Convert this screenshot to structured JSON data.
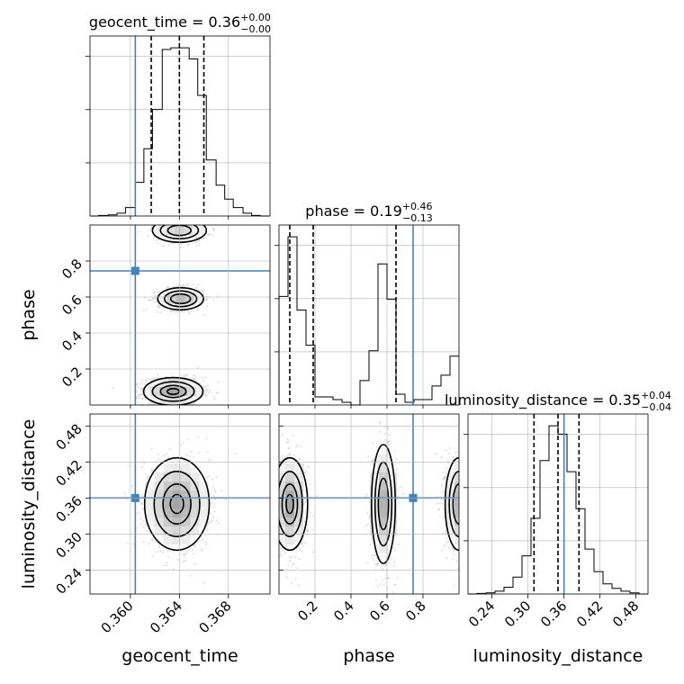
{
  "chart_data": {
    "type": "corner",
    "parameters": [
      {
        "name": "geocent_time",
        "median": "0.36",
        "plus": "+0.00",
        "minus": "−0.00",
        "range": [
          0.3567,
          0.3714
        ],
        "ticks": [
          0.36,
          0.364,
          0.368
        ],
        "tick_labels": [
          "0.360",
          "0.364",
          "0.368"
        ],
        "truth": 0.3604,
        "quantiles": [
          0.3617,
          0.364,
          0.366
        ]
      },
      {
        "name": "phase",
        "median": "0.19",
        "plus": "+0.46",
        "minus": "−0.13",
        "range": [
          0.0,
          1.0
        ],
        "ticks": [
          0.2,
          0.4,
          0.6,
          0.8
        ],
        "tick_labels": [
          "0.2",
          "0.4",
          "0.6",
          "0.8"
        ],
        "truth": 0.745,
        "quantiles": [
          0.06,
          0.19,
          0.65
        ]
      },
      {
        "name": "luminosity_distance",
        "median": "0.35",
        "plus": "+0.04",
        "minus": "−0.04",
        "range": [
          0.2,
          0.5
        ],
        "ticks": [
          0.24,
          0.3,
          0.36,
          0.42,
          0.48
        ],
        "tick_labels": [
          "0.24",
          "0.30",
          "0.36",
          "0.42",
          "0.48"
        ],
        "truth": 0.36,
        "quantiles": [
          0.31,
          0.35,
          0.385
        ]
      }
    ],
    "title_prefix": " = ",
    "truth_color": "#4682b4",
    "hist_1d": [
      {
        "param": "geocent_time",
        "edges": [
          0.3567,
          0.3574,
          0.3582,
          0.3589,
          0.3596,
          0.3604,
          0.3611,
          0.3618,
          0.3626,
          0.3633,
          0.364,
          0.3648,
          0.3655,
          0.3662,
          0.367,
          0.3677,
          0.3684,
          0.3692,
          0.3699,
          0.3706,
          0.3714
        ],
        "counts": [
          0,
          1,
          2,
          5,
          15,
          60,
          120,
          190,
          297,
          300,
          300,
          280,
          215,
          100,
          55,
          30,
          15,
          5,
          1,
          0
        ]
      },
      {
        "param": "phase",
        "edges": [
          0.0,
          0.05,
          0.1,
          0.15,
          0.2,
          0.25,
          0.3,
          0.35,
          0.4,
          0.45,
          0.5,
          0.55,
          0.6,
          0.65,
          0.7,
          0.75,
          0.8,
          0.85,
          0.9,
          0.95,
          1.0
        ],
        "counts": [
          40,
          62,
          35,
          22,
          3,
          3,
          2,
          1,
          0,
          9,
          20,
          52,
          39,
          4,
          1,
          2,
          2,
          7,
          11,
          18
        ]
      },
      {
        "param": "luminosity_distance",
        "edges": [
          0.2,
          0.215,
          0.23,
          0.245,
          0.26,
          0.275,
          0.29,
          0.305,
          0.32,
          0.335,
          0.35,
          0.365,
          0.38,
          0.395,
          0.41,
          0.425,
          0.44,
          0.455,
          0.47,
          0.485,
          0.5
        ],
        "counts": [
          0,
          1,
          2,
          5,
          12,
          30,
          68,
          135,
          238,
          300,
          285,
          218,
          152,
          80,
          40,
          18,
          10,
          5,
          2,
          0
        ]
      }
    ],
    "contours_2d": [
      {
        "x": "geocent_time",
        "y": "phase",
        "modes": [
          {
            "cx": 0.3635,
            "cy": 0.075,
            "sx": 0.0011,
            "sy": 0.035,
            "peak": 1.0
          },
          {
            "cx": 0.3641,
            "cy": 0.59,
            "sx": 0.00085,
            "sy": 0.028,
            "peak": 0.75
          },
          {
            "cx": 0.364,
            "cy": 0.97,
            "sx": 0.001,
            "sy": 0.03,
            "peak": 0.5
          }
        ]
      },
      {
        "x": "geocent_time",
        "y": "luminosity_distance",
        "modes": [
          {
            "cx": 0.3638,
            "cy": 0.35,
            "sx": 0.0012,
            "sy": 0.035,
            "peak": 1.0
          }
        ]
      },
      {
        "x": "phase",
        "y": "luminosity_distance",
        "modes": [
          {
            "cx": 0.06,
            "cy": 0.35,
            "sx": 0.045,
            "sy": 0.035,
            "peak": 1.0
          },
          {
            "cx": 0.58,
            "cy": 0.35,
            "sx": 0.03,
            "sy": 0.045,
            "peak": 0.85
          },
          {
            "cx": 1.0,
            "cy": 0.35,
            "sx": 0.035,
            "sy": 0.035,
            "peak": 0.8
          }
        ]
      }
    ],
    "grid": true
  }
}
